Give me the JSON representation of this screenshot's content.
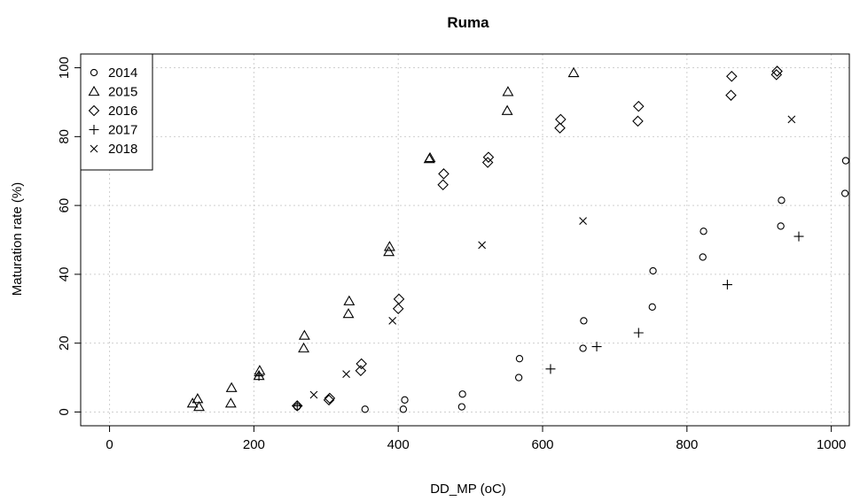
{
  "chart_data": {
    "type": "scatter",
    "title": "Ruma",
    "xlabel": "DD_MP (oC)",
    "ylabel": "Maturation rate (%)",
    "xlim": [
      -40,
      1025
    ],
    "ylim": [
      -4,
      104
    ],
    "xticks": [
      0,
      200,
      400,
      600,
      800,
      1000
    ],
    "yticks": [
      0,
      20,
      40,
      60,
      80,
      100
    ],
    "grid": true,
    "legend_position": "top-left",
    "series": [
      {
        "name": "2014",
        "marker": "circle",
        "points": [
          [
            260,
            1.5
          ],
          [
            354,
            0.8
          ],
          [
            407,
            0.8
          ],
          [
            409,
            3.5
          ],
          [
            488,
            1.5
          ],
          [
            489,
            5.2
          ],
          [
            567,
            10
          ],
          [
            568,
            15.5
          ],
          [
            656,
            18.5
          ],
          [
            657,
            26.5
          ],
          [
            752,
            30.5
          ],
          [
            753,
            41
          ],
          [
            822,
            45
          ],
          [
            823,
            52.5
          ],
          [
            930,
            54
          ],
          [
            931,
            61.5
          ],
          [
            1019,
            63.5
          ],
          [
            1020,
            73
          ]
        ]
      },
      {
        "name": "2015",
        "marker": "triangle",
        "points": [
          [
            115,
            2.5
          ],
          [
            122,
            3.8
          ],
          [
            124,
            1.5
          ],
          [
            168,
            2.5
          ],
          [
            169,
            7
          ],
          [
            207,
            10.5
          ],
          [
            208,
            12
          ],
          [
            269,
            18.5
          ],
          [
            270,
            22.2
          ],
          [
            331,
            28.5
          ],
          [
            332,
            32.2
          ],
          [
            387,
            46.5
          ],
          [
            388,
            48
          ],
          [
            443,
            73.5
          ],
          [
            444,
            73.8
          ],
          [
            551,
            87.5
          ],
          [
            552,
            93
          ],
          [
            643,
            98.5
          ]
        ]
      },
      {
        "name": "2016",
        "marker": "diamond",
        "points": [
          [
            260,
            1.8
          ],
          [
            304,
            3.5
          ],
          [
            305,
            4
          ],
          [
            348,
            12
          ],
          [
            349,
            14
          ],
          [
            400,
            30
          ],
          [
            401,
            32.8
          ],
          [
            462,
            66
          ],
          [
            463,
            69.2
          ],
          [
            524,
            72.5
          ],
          [
            525,
            74
          ],
          [
            624,
            82.5
          ],
          [
            625,
            85
          ],
          [
            732,
            84.5
          ],
          [
            733,
            88.8
          ],
          [
            861,
            92
          ],
          [
            862,
            97.5
          ],
          [
            924,
            98
          ],
          [
            925,
            99
          ]
        ]
      },
      {
        "name": "2017",
        "marker": "plus",
        "points": [
          [
            207,
            10.5
          ],
          [
            260,
            1.8
          ],
          [
            611,
            12.5
          ],
          [
            675,
            19
          ],
          [
            733,
            23
          ],
          [
            856,
            37
          ],
          [
            955,
            51
          ]
        ]
      },
      {
        "name": "2018",
        "marker": "cross",
        "points": [
          [
            283,
            5
          ],
          [
            328,
            11
          ],
          [
            392,
            26.5
          ],
          [
            516,
            48.5
          ],
          [
            656,
            55.5
          ],
          [
            945,
            85
          ]
        ]
      }
    ]
  }
}
